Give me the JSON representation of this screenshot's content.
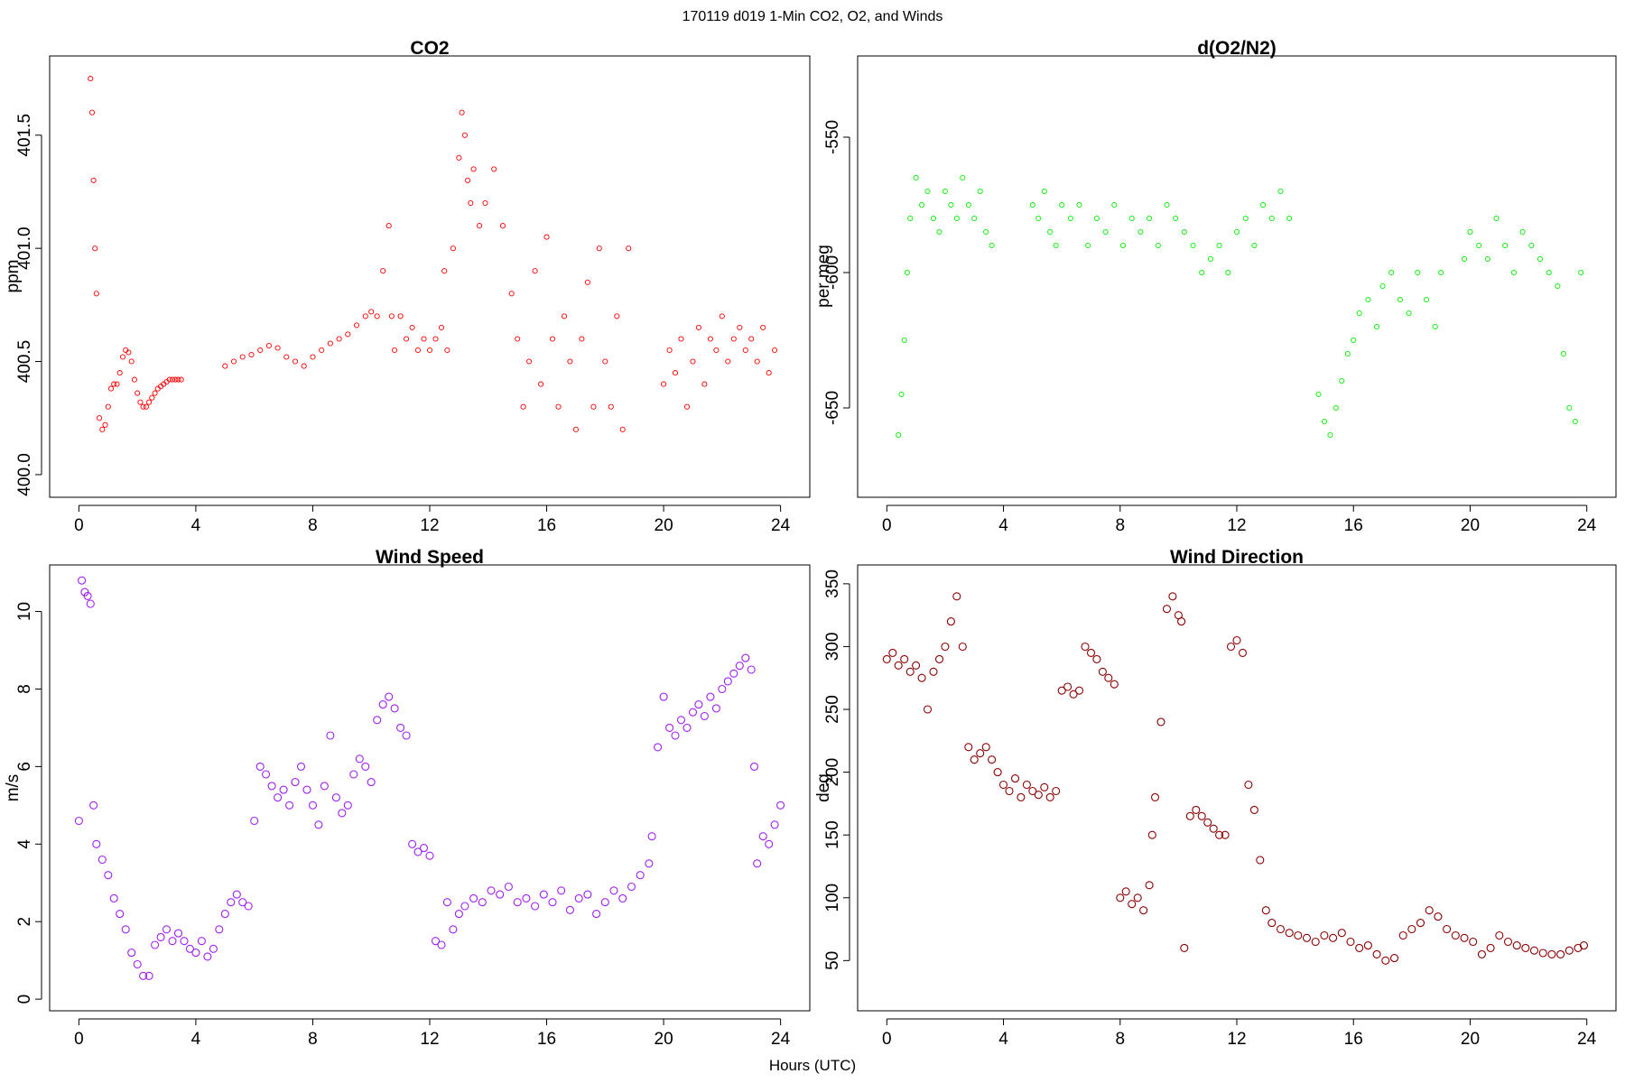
{
  "figure": {
    "suptitle": "170119   d019   1-Min CO2, O2, and Winds",
    "xlabel": "Hours (UTC)"
  },
  "chart_data": [
    {
      "type": "scatter",
      "title": "CO2",
      "ylabel": "ppm",
      "xlabel": "",
      "xlim": [
        -1,
        25
      ],
      "ylim": [
        399.9,
        401.85
      ],
      "xticks": [
        0,
        4,
        8,
        12,
        16,
        20,
        24
      ],
      "yticks": [
        400.0,
        400.5,
        401.0,
        401.5
      ],
      "ytick_labels": [
        "400.0",
        "400.5",
        "401.0",
        "401.5"
      ],
      "color": "#ff0000",
      "marker": "open-circle-small",
      "grid": false,
      "series": [
        {
          "x": [
            0.4,
            0.45,
            0.5,
            0.55,
            0.6,
            0.7,
            0.8,
            0.9,
            1.0,
            1.1,
            1.2,
            1.3,
            1.4,
            1.5,
            1.6,
            1.7,
            1.8,
            1.9,
            2.0,
            2.1,
            2.2,
            2.3,
            2.4,
            2.5,
            2.6,
            2.7,
            2.8,
            2.9,
            3.0,
            3.1,
            3.2,
            3.3,
            3.4,
            3.5,
            5.0,
            5.3,
            5.6,
            5.9,
            6.2,
            6.5,
            6.8,
            7.1,
            7.4,
            7.7,
            8.0,
            8.3,
            8.6,
            8.9,
            9.2,
            9.5,
            9.8,
            10.0,
            10.2,
            10.4,
            10.6,
            10.7,
            10.8,
            11.0,
            11.2,
            11.4,
            11.6,
            11.8,
            12.0,
            12.2,
            12.4,
            12.5,
            12.6,
            12.8,
            13.0,
            13.1,
            13.2,
            13.3,
            13.4,
            13.5,
            13.7,
            13.9,
            14.2,
            14.5,
            14.8,
            15.0,
            15.2,
            15.4,
            15.6,
            15.8,
            16.0,
            16.2,
            16.4,
            16.6,
            16.8,
            17.0,
            17.2,
            17.4,
            17.6,
            17.8,
            18.0,
            18.2,
            18.4,
            18.6,
            18.8,
            20.0,
            20.2,
            20.4,
            20.6,
            20.8,
            21.0,
            21.2,
            21.4,
            21.6,
            21.8,
            22.0,
            22.2,
            22.4,
            22.6,
            22.8,
            23.0,
            23.2,
            23.4,
            23.6,
            23.8
          ],
          "y": [
            401.75,
            401.6,
            401.3,
            401.0,
            400.8,
            400.25,
            400.2,
            400.22,
            400.3,
            400.38,
            400.4,
            400.4,
            400.45,
            400.52,
            400.55,
            400.54,
            400.5,
            400.42,
            400.36,
            400.32,
            400.3,
            400.3,
            400.32,
            400.34,
            400.36,
            400.38,
            400.39,
            400.4,
            400.41,
            400.42,
            400.42,
            400.42,
            400.42,
            400.42,
            400.48,
            400.5,
            400.52,
            400.53,
            400.55,
            400.57,
            400.56,
            400.52,
            400.5,
            400.48,
            400.52,
            400.55,
            400.58,
            400.6,
            400.62,
            400.66,
            400.7,
            400.72,
            400.7,
            400.9,
            401.1,
            400.7,
            400.55,
            400.7,
            400.6,
            400.65,
            400.55,
            400.6,
            400.55,
            400.6,
            400.65,
            400.9,
            400.55,
            401.0,
            401.4,
            401.6,
            401.5,
            401.3,
            401.2,
            401.35,
            401.1,
            401.2,
            401.35,
            401.1,
            400.8,
            400.6,
            400.3,
            400.5,
            400.9,
            400.4,
            401.05,
            400.6,
            400.3,
            400.7,
            400.5,
            400.2,
            400.6,
            400.85,
            400.3,
            401.0,
            400.5,
            400.3,
            400.7,
            400.2,
            401.0,
            400.4,
            400.55,
            400.45,
            400.6,
            400.3,
            400.5,
            400.65,
            400.4,
            400.6,
            400.55,
            400.7,
            400.5,
            400.6,
            400.65,
            400.55,
            400.6,
            400.5,
            400.65,
            400.45,
            400.55
          ]
        }
      ]
    },
    {
      "type": "scatter",
      "title": "d(O2/N2)",
      "ylabel": "per meg",
      "xlabel": "",
      "xlim": [
        -1,
        25
      ],
      "ylim": [
        -683,
        -520
      ],
      "xticks": [
        0,
        4,
        8,
        12,
        16,
        20,
        24
      ],
      "yticks": [
        -650,
        -600,
        -550
      ],
      "ytick_labels": [
        "-650",
        "-600",
        "-550"
      ],
      "color": "#00ee00",
      "marker": "open-circle-small",
      "grid": false,
      "series": [
        {
          "x": [
            0.4,
            0.5,
            0.6,
            0.7,
            0.8,
            1.0,
            1.2,
            1.4,
            1.6,
            1.8,
            2.0,
            2.2,
            2.4,
            2.6,
            2.8,
            3.0,
            3.2,
            3.4,
            3.6,
            5.0,
            5.2,
            5.4,
            5.6,
            5.8,
            6.0,
            6.3,
            6.6,
            6.9,
            7.2,
            7.5,
            7.8,
            8.1,
            8.4,
            8.7,
            9.0,
            9.3,
            9.6,
            9.9,
            10.2,
            10.5,
            10.8,
            11.1,
            11.4,
            11.7,
            12.0,
            12.3,
            12.6,
            12.9,
            13.2,
            13.5,
            13.8,
            14.8,
            15.0,
            15.2,
            15.4,
            15.6,
            15.8,
            16.0,
            16.2,
            16.5,
            16.8,
            17.0,
            17.3,
            17.6,
            17.9,
            18.2,
            18.5,
            18.8,
            19.0,
            19.8,
            20.0,
            20.3,
            20.6,
            20.9,
            21.2,
            21.5,
            21.8,
            22.1,
            22.4,
            22.7,
            23.0,
            23.2,
            23.4,
            23.6,
            23.8
          ],
          "y": [
            -660,
            -645,
            -625,
            -600,
            -580,
            -565,
            -575,
            -570,
            -580,
            -585,
            -570,
            -575,
            -580,
            -565,
            -575,
            -580,
            -570,
            -585,
            -590,
            -575,
            -580,
            -570,
            -585,
            -590,
            -575,
            -580,
            -575,
            -590,
            -580,
            -585,
            -575,
            -590,
            -580,
            -585,
            -580,
            -590,
            -575,
            -580,
            -585,
            -590,
            -600,
            -595,
            -590,
            -600,
            -585,
            -580,
            -590,
            -575,
            -580,
            -570,
            -580,
            -645,
            -655,
            -660,
            -650,
            -640,
            -630,
            -625,
            -615,
            -610,
            -620,
            -605,
            -600,
            -610,
            -615,
            -600,
            -610,
            -620,
            -600,
            -595,
            -585,
            -590,
            -595,
            -580,
            -590,
            -600,
            -585,
            -590,
            -595,
            -600,
            -605,
            -630,
            -650,
            -655,
            -600
          ]
        }
      ]
    },
    {
      "type": "scatter",
      "title": "Wind Speed",
      "ylabel": "m/s",
      "xlabel": "",
      "xlim": [
        -1,
        25
      ],
      "ylim": [
        -0.3,
        11.2
      ],
      "xticks": [
        0,
        4,
        8,
        12,
        16,
        20,
        24
      ],
      "yticks": [
        0,
        2,
        4,
        6,
        8,
        10
      ],
      "ytick_labels": [
        "0",
        "2",
        "4",
        "6",
        "8",
        "10"
      ],
      "color": "#a020f0",
      "marker": "open-circle",
      "grid": false,
      "series": [
        {
          "x": [
            0.0,
            0.1,
            0.2,
            0.3,
            0.4,
            0.5,
            0.6,
            0.8,
            1.0,
            1.2,
            1.4,
            1.6,
            1.8,
            2.0,
            2.2,
            2.4,
            2.6,
            2.8,
            3.0,
            3.2,
            3.4,
            3.6,
            3.8,
            4.0,
            4.2,
            4.4,
            4.6,
            4.8,
            5.0,
            5.2,
            5.4,
            5.6,
            5.8,
            6.0,
            6.2,
            6.4,
            6.6,
            6.8,
            7.0,
            7.2,
            7.4,
            7.6,
            7.8,
            8.0,
            8.2,
            8.4,
            8.6,
            8.8,
            9.0,
            9.2,
            9.4,
            9.6,
            9.8,
            10.0,
            10.2,
            10.4,
            10.6,
            10.8,
            11.0,
            11.2,
            11.4,
            11.6,
            11.8,
            12.0,
            12.2,
            12.4,
            12.6,
            12.8,
            13.0,
            13.2,
            13.5,
            13.8,
            14.1,
            14.4,
            14.7,
            15.0,
            15.3,
            15.6,
            15.9,
            16.2,
            16.5,
            16.8,
            17.1,
            17.4,
            17.7,
            18.0,
            18.3,
            18.6,
            18.9,
            19.2,
            19.5,
            19.6,
            19.8,
            20.0,
            20.2,
            20.4,
            20.6,
            20.8,
            21.0,
            21.2,
            21.4,
            21.6,
            21.8,
            22.0,
            22.2,
            22.4,
            22.6,
            22.8,
            23.0,
            23.1,
            23.2,
            23.4,
            23.6,
            23.8,
            24.0
          ],
          "y": [
            4.6,
            10.8,
            10.5,
            10.4,
            10.2,
            5.0,
            4.0,
            3.6,
            3.2,
            2.6,
            2.2,
            1.8,
            1.2,
            0.9,
            0.6,
            0.6,
            1.4,
            1.6,
            1.8,
            1.5,
            1.7,
            1.5,
            1.3,
            1.2,
            1.5,
            1.1,
            1.3,
            1.8,
            2.2,
            2.5,
            2.7,
            2.5,
            2.4,
            4.6,
            6.0,
            5.8,
            5.5,
            5.2,
            5.4,
            5.0,
            5.6,
            6.0,
            5.4,
            5.0,
            4.5,
            5.5,
            6.8,
            5.2,
            4.8,
            5.0,
            5.8,
            6.2,
            6.0,
            5.6,
            7.2,
            7.6,
            7.8,
            7.5,
            7.0,
            6.8,
            4.0,
            3.8,
            3.9,
            3.7,
            1.5,
            1.4,
            2.5,
            1.8,
            2.2,
            2.4,
            2.6,
            2.5,
            2.8,
            2.7,
            2.9,
            2.5,
            2.6,
            2.4,
            2.7,
            2.5,
            2.8,
            2.3,
            2.6,
            2.7,
            2.2,
            2.5,
            2.8,
            2.6,
            2.9,
            3.2,
            3.5,
            4.2,
            6.5,
            7.8,
            7.0,
            6.8,
            7.2,
            7.0,
            7.4,
            7.6,
            7.3,
            7.8,
            7.5,
            8.0,
            8.2,
            8.4,
            8.6,
            8.8,
            8.5,
            6.0,
            3.5,
            4.2,
            4.0,
            4.5,
            5.0
          ]
        }
      ]
    },
    {
      "type": "scatter",
      "title": "Wind Direction",
      "ylabel": "deg",
      "xlabel": "",
      "xlim": [
        -1,
        25
      ],
      "ylim": [
        10,
        365
      ],
      "xticks": [
        0,
        4,
        8,
        12,
        16,
        20,
        24
      ],
      "yticks": [
        50,
        100,
        150,
        200,
        250,
        300,
        350
      ],
      "ytick_labels": [
        "50",
        "100",
        "150",
        "200",
        "250",
        "300",
        "350"
      ],
      "color": "#8b0000",
      "marker": "open-circle",
      "grid": false,
      "series": [
        {
          "x": [
            0.0,
            0.2,
            0.4,
            0.6,
            0.8,
            1.0,
            1.2,
            1.4,
            1.6,
            1.8,
            2.0,
            2.2,
            2.4,
            2.6,
            2.8,
            3.0,
            3.2,
            3.4,
            3.6,
            3.8,
            4.0,
            4.2,
            4.4,
            4.6,
            4.8,
            5.0,
            5.2,
            5.4,
            5.6,
            5.8,
            6.0,
            6.2,
            6.4,
            6.6,
            6.8,
            7.0,
            7.2,
            7.4,
            7.6,
            7.8,
            8.0,
            8.2,
            8.4,
            8.6,
            8.8,
            9.0,
            9.1,
            9.2,
            9.4,
            9.6,
            9.8,
            10.0,
            10.1,
            10.2,
            10.4,
            10.6,
            10.8,
            11.0,
            11.2,
            11.4,
            11.6,
            11.8,
            12.0,
            12.2,
            12.4,
            12.6,
            12.8,
            13.0,
            13.2,
            13.5,
            13.8,
            14.1,
            14.4,
            14.7,
            15.0,
            15.3,
            15.6,
            15.9,
            16.2,
            16.5,
            16.8,
            17.1,
            17.4,
            17.7,
            18.0,
            18.3,
            18.6,
            18.9,
            19.2,
            19.5,
            19.8,
            20.1,
            20.4,
            20.7,
            21.0,
            21.3,
            21.6,
            21.9,
            22.2,
            22.5,
            22.8,
            23.1,
            23.4,
            23.7,
            23.9
          ],
          "y": [
            290,
            295,
            285,
            290,
            280,
            285,
            275,
            250,
            280,
            290,
            300,
            320,
            340,
            300,
            220,
            210,
            215,
            220,
            210,
            200,
            190,
            185,
            195,
            180,
            190,
            185,
            182,
            188,
            180,
            185,
            265,
            268,
            262,
            265,
            300,
            295,
            290,
            280,
            275,
            270,
            100,
            105,
            95,
            100,
            90,
            110,
            150,
            180,
            240,
            330,
            340,
            325,
            320,
            60,
            165,
            170,
            165,
            160,
            155,
            150,
            150,
            300,
            305,
            295,
            190,
            170,
            130,
            90,
            80,
            75,
            72,
            70,
            68,
            65,
            70,
            68,
            72,
            65,
            60,
            62,
            55,
            50,
            52,
            70,
            75,
            80,
            90,
            85,
            75,
            70,
            68,
            65,
            55,
            60,
            70,
            65,
            62,
            60,
            58,
            56,
            55,
            55,
            58,
            60,
            62
          ]
        }
      ]
    }
  ]
}
